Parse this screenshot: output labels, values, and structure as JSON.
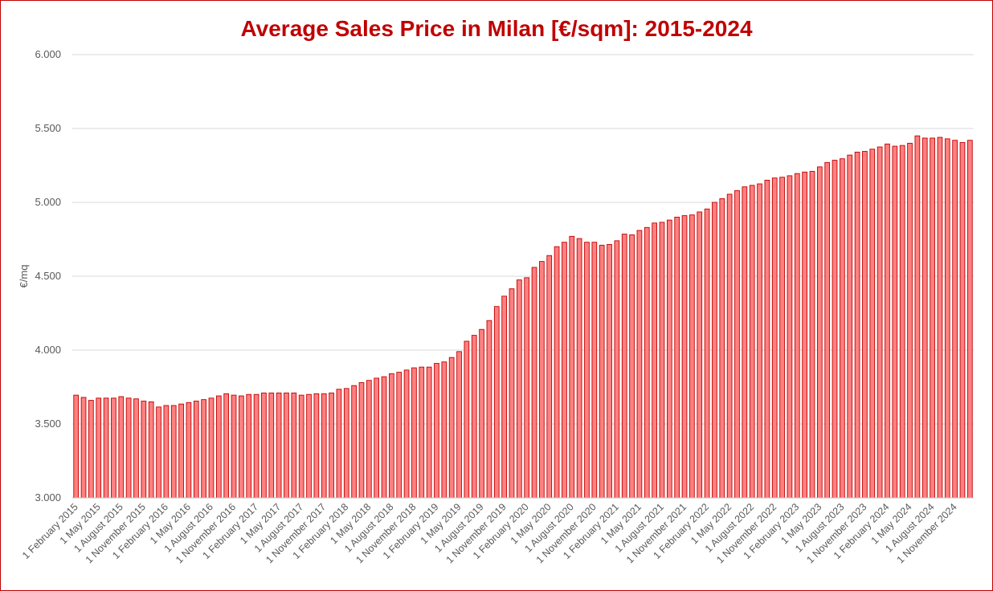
{
  "chart_data": {
    "type": "bar",
    "title": "Average Sales Price in Milan [€/sqm]: 2015-2024",
    "xlabel": "",
    "ylabel": "€/mq",
    "ylim": [
      3000,
      6000
    ],
    "yticks": [
      "3.000",
      "3.500",
      "4.000",
      "4.500",
      "5.000",
      "5.500",
      "6.000"
    ],
    "ytick_values": [
      3000,
      3500,
      4000,
      4500,
      5000,
      5500,
      6000
    ],
    "grid": true,
    "legend": "none",
    "bar_fill": "#ff8080",
    "bar_stroke": "#c00000",
    "x_tick_labels": [
      "1 February 2015",
      "1 May 2015",
      "1 August 2015",
      "1 November 2015",
      "1 February 2016",
      "1 May 2016",
      "1 August 2016",
      "1 November 2016",
      "1 February 2017",
      "1 May 2017",
      "1 August 2017",
      "1 November 2017",
      "1 February 2018",
      "1 May 2018",
      "1 August 2018",
      "1 November 2018",
      "1 February 2019",
      "1 May 2019",
      "1 August 2019",
      "1 November 2019",
      "1 February 2020",
      "1 May 2020",
      "1 August 2020",
      "1 November 2020",
      "1 February 2021",
      "1 May 2021",
      "1 August 2021",
      "1 November 2021",
      "1 February 2022",
      "1 May 2022",
      "1 August 2022",
      "1 November 2022",
      "1 February 2023",
      "1 May 2023",
      "1 August 2023",
      "1 November 2023",
      "1 February 2024",
      "1 May 2024",
      "1 August 2024",
      "1 November 2024"
    ],
    "start": "2015-02",
    "values": [
      3695,
      3680,
      3660,
      3675,
      3675,
      3675,
      3685,
      3675,
      3670,
      3655,
      3650,
      3615,
      3625,
      3625,
      3635,
      3645,
      3655,
      3665,
      3675,
      3690,
      3705,
      3695,
      3690,
      3700,
      3700,
      3710,
      3710,
      3710,
      3710,
      3710,
      3695,
      3700,
      3705,
      3705,
      3710,
      3735,
      3740,
      3760,
      3780,
      3795,
      3810,
      3820,
      3840,
      3850,
      3865,
      3880,
      3885,
      3885,
      3910,
      3920,
      3950,
      3990,
      4060,
      4100,
      4140,
      4200,
      4295,
      4365,
      4415,
      4475,
      4490,
      4560,
      4600,
      4640,
      4700,
      4730,
      4770,
      4755,
      4730,
      4730,
      4710,
      4715,
      4740,
      4785,
      4780,
      4810,
      4830,
      4860,
      4865,
      4880,
      4900,
      4910,
      4915,
      4935,
      4955,
      5000,
      5025,
      5055,
      5080,
      5105,
      5115,
      5125,
      5150,
      5165,
      5170,
      5180,
      5195,
      5205,
      5210,
      5240,
      5270,
      5285,
      5295,
      5320,
      5340,
      5345,
      5360,
      5375,
      5395,
      5380,
      5385,
      5400,
      5450,
      5435,
      5435,
      5440,
      5430,
      5420,
      5405,
      5420
    ]
  }
}
